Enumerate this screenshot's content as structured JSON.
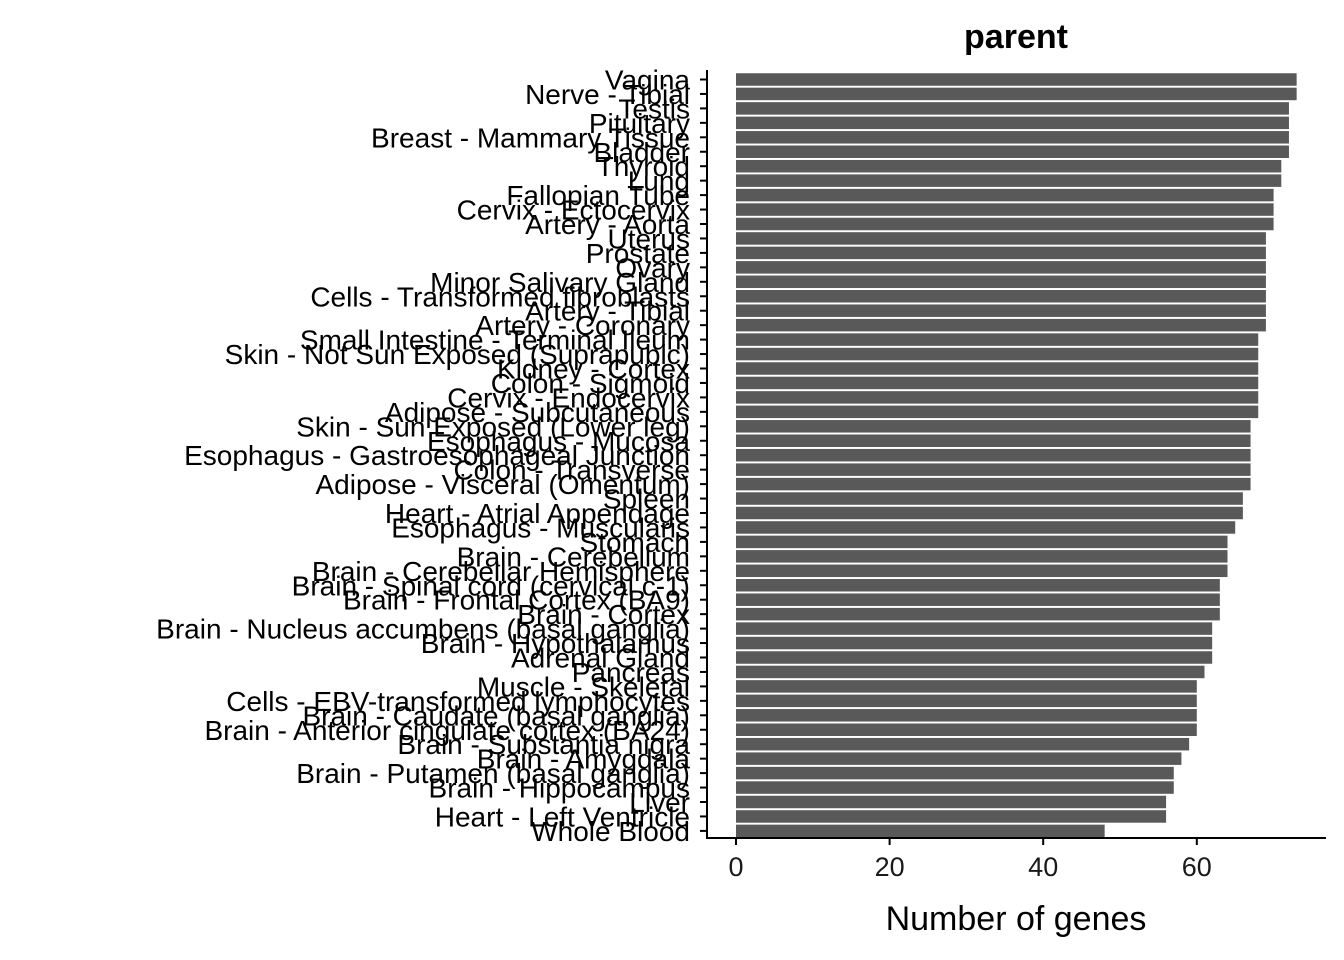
{
  "chart_data": {
    "type": "bar",
    "orientation": "horizontal",
    "title": "parent",
    "xlabel": "Number of genes",
    "ylabel": "",
    "xlim": [
      0,
      77
    ],
    "xticks": [
      0,
      20,
      40,
      60
    ],
    "grid": false,
    "bar_color": "#595959",
    "categories": [
      "Vagina",
      "Nerve - Tibial",
      "Testis",
      "Pituitary",
      "Breast - Mammary Tissue",
      "Bladder",
      "Thyroid",
      "Lung",
      "Fallopian Tube",
      "Cervix - Ectocervix",
      "Artery - Aorta",
      "Uterus",
      "Prostate",
      "Ovary",
      "Minor Salivary Gland",
      "Cells - Transformed fibroblasts",
      "Artery - Tibial",
      "Artery - Coronary",
      "Small Intestine - Terminal Ileum",
      "Skin - Not Sun Exposed (Suprapubic)",
      "Kidney - Cortex",
      "Colon - Sigmoid",
      "Cervix - Endocervix",
      "Adipose - Subcutaneous",
      "Skin - Sun Exposed (Lower leg)",
      "Esophagus - Mucosa",
      "Esophagus - Gastroesophageal Junction",
      "Colon - Transverse",
      "Adipose - Visceral (Omentum)",
      "Spleen",
      "Heart - Atrial Appendage",
      "Esophagus - Muscularis",
      "Stomach",
      "Brain - Cerebellum",
      "Brain - Cerebellar Hemisphere",
      "Brain - Spinal cord (cervical c-1)",
      "Brain - Frontal Cortex (BA9)",
      "Brain - Cortex",
      "Brain - Nucleus accumbens (basal ganglia)",
      "Brain - Hypothalamus",
      "Adrenal Gland",
      "Pancreas",
      "Muscle - Skeletal",
      "Cells - EBV-transformed lymphocytes",
      "Brain - Caudate (basal ganglia)",
      "Brain - Anterior cingulate cortex (BA24)",
      "Brain - Substantia nigra",
      "Brain - Amygdala",
      "Brain - Putamen (basal ganglia)",
      "Brain - Hippocampus",
      "Liver",
      "Heart - Left Ventricle",
      "Whole Blood"
    ],
    "values": [
      73,
      73,
      72,
      72,
      72,
      72,
      71,
      71,
      70,
      70,
      70,
      69,
      69,
      69,
      69,
      69,
      69,
      69,
      68,
      68,
      68,
      68,
      68,
      68,
      67,
      67,
      67,
      67,
      67,
      66,
      66,
      65,
      64,
      64,
      64,
      63,
      63,
      63,
      62,
      62,
      62,
      61,
      60,
      60,
      60,
      60,
      59,
      58,
      57,
      57,
      56,
      56,
      48
    ]
  }
}
